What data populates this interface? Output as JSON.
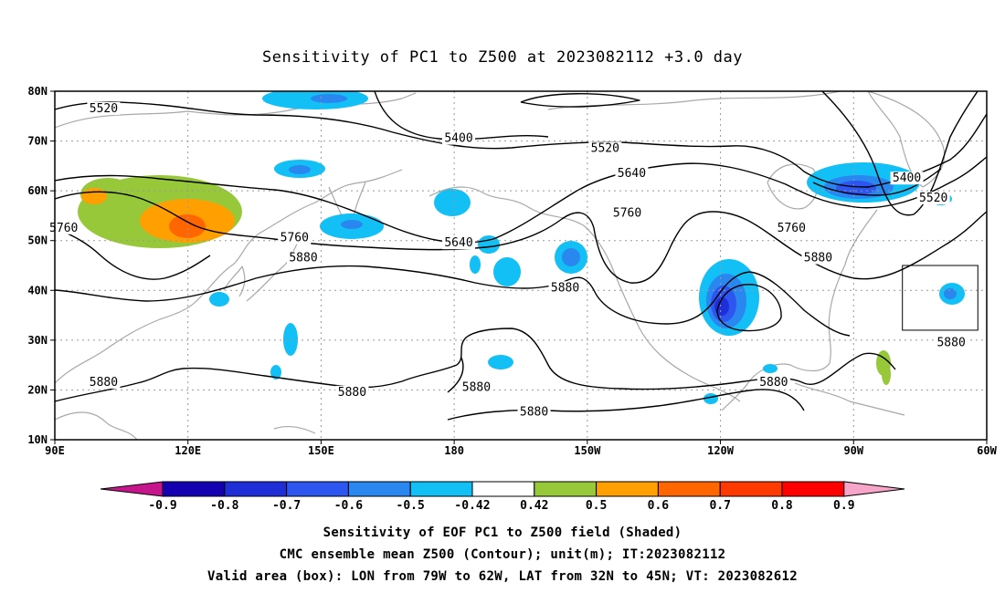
{
  "title": "Sensitivity of PC1 to Z500 at 2023082112 +3.0 day",
  "map": {
    "lon_range": [
      90,
      300
    ],
    "lat_range": [
      10,
      80
    ],
    "lon_tick_labels": [
      "90E",
      "120E",
      "150E",
      "180",
      "150W",
      "120W",
      "90W",
      "60W"
    ],
    "lat_tick_labels": [
      "10N",
      "20N",
      "30N",
      "40N",
      "50N",
      "60N",
      "70N",
      "80N"
    ],
    "grid": "dotted"
  },
  "contour_labels": [
    {
      "text": "5520",
      "lon": 101,
      "lat": 76
    },
    {
      "text": "5400",
      "lon": 181,
      "lat": 70
    },
    {
      "text": "5520",
      "lon": 214,
      "lat": 68
    },
    {
      "text": "5640",
      "lon": 220,
      "lat": 63
    },
    {
      "text": "5760",
      "lon": 219,
      "lat": 55
    },
    {
      "text": "5760",
      "lon": 256,
      "lat": 52
    },
    {
      "text": "5400",
      "lon": 282,
      "lat": 62
    },
    {
      "text": "5520",
      "lon": 288,
      "lat": 58
    },
    {
      "text": "5760",
      "lon": 92,
      "lat": 52
    },
    {
      "text": "5760",
      "lon": 144,
      "lat": 50
    },
    {
      "text": "5640",
      "lon": 181,
      "lat": 49
    },
    {
      "text": "5880",
      "lon": 146,
      "lat": 46
    },
    {
      "text": "5880",
      "lon": 205,
      "lat": 40
    },
    {
      "text": "5880",
      "lon": 262,
      "lat": 46
    },
    {
      "text": "5880",
      "lon": 292,
      "lat": 29
    },
    {
      "text": "5880",
      "lon": 252,
      "lat": 21
    },
    {
      "text": "5880",
      "lon": 101,
      "lat": 21
    },
    {
      "text": "5880",
      "lon": 157,
      "lat": 19
    },
    {
      "text": "5880",
      "lon": 185,
      "lat": 20
    },
    {
      "text": "5880",
      "lon": 198,
      "lat": 15
    }
  ],
  "valid_box": {
    "lon_w": -79,
    "lon_e": -62,
    "lat_s": 32,
    "lat_n": 45
  },
  "colorbar": {
    "labels": [
      "-0.9",
      "-0.8",
      "-0.7",
      "-0.6",
      "-0.5",
      "-0.42",
      "0.42",
      "0.5",
      "0.6",
      "0.7",
      "0.8",
      "0.9"
    ],
    "colors": {
      "low_extend": "#c6168c",
      "high_extend": "#f7a6c9",
      "bins": [
        "#1400b0",
        "#1e2fd8",
        "#2d55f0",
        "#2a87f0",
        "#12c0f5",
        "#ffffff",
        "#96c83a",
        "#ffa000",
        "#ff6600",
        "#ff3a00",
        "#ff0000"
      ]
    }
  },
  "footer": {
    "line1": "Sensitivity of EOF PC1 to Z500 field (Shaded)",
    "line2": "CMC ensemble mean Z500 (Contour); unit(m); IT:2023082112",
    "line3": "Valid area (box): LON from 79W to 62W, LAT from 32N to 45N; VT: 2023082612"
  }
}
